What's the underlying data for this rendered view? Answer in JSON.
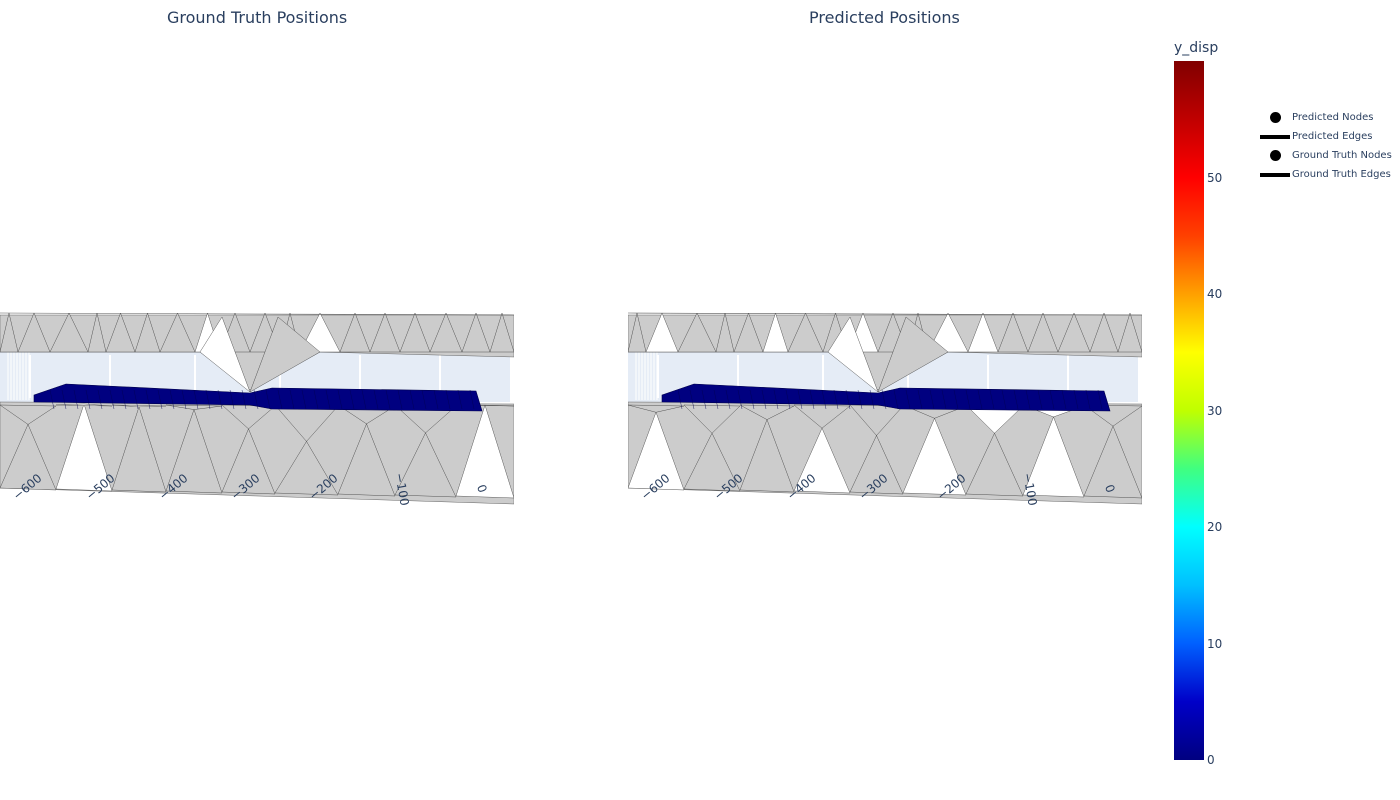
{
  "chart_data": {
    "type": "mesh3d",
    "panels": [
      {
        "title": "Ground Truth Positions"
      },
      {
        "title": "Predicted Positions"
      }
    ],
    "x_tick_labels": [
      "−600",
      "−500",
      "−400",
      "−300",
      "−200",
      "−100",
      "0"
    ],
    "colorbar": {
      "title": "y_disp",
      "range": [
        0,
        60
      ],
      "ticks": [
        "0",
        "10",
        "20",
        "30",
        "40",
        "50"
      ],
      "colorscale": [
        "#000080",
        "#0000c8",
        "#0060ff",
        "#00c0ff",
        "#00ffff",
        "#40ff80",
        "#c0ff00",
        "#ffff00",
        "#ffa000",
        "#ff4000",
        "#ff0000",
        "#c00000",
        "#800000"
      ]
    },
    "legend": {
      "placement": "top-right",
      "items": [
        {
          "label": "Predicted Nodes",
          "symbol": "dot"
        },
        {
          "label": "Predicted Edges",
          "symbol": "line"
        },
        {
          "label": "Ground Truth Nodes",
          "symbol": "dot"
        },
        {
          "label": "Ground Truth Edges",
          "symbol": "line"
        }
      ]
    },
    "colors": {
      "mesh": "#cccccc",
      "plate": "#000080",
      "floor": "#e5ecf6"
    }
  }
}
